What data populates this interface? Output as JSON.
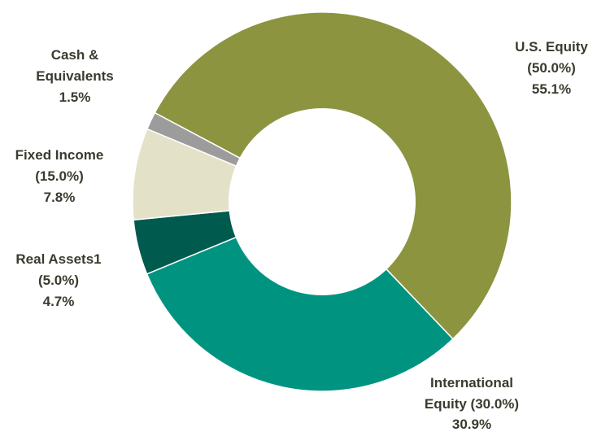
{
  "chart_data": {
    "type": "pie",
    "donut": true,
    "legend": "none",
    "slices": [
      {
        "name": "U.S. Equity",
        "target": "(50.0%)",
        "value": 55.1,
        "value_label": "55.1%",
        "color": "#8c9440",
        "label_lines": [
          "U.S. Equity",
          "(50.0%)",
          "55.1%"
        ]
      },
      {
        "name": "International Equity",
        "target": "(30.0%)",
        "value": 30.9,
        "value_label": "30.9%",
        "color": "#009480",
        "label_lines": [
          "International",
          "Equity (30.0%)",
          "30.9%"
        ]
      },
      {
        "name": "Real Assets1",
        "target": "(5.0%)",
        "value": 4.7,
        "value_label": "4.7%",
        "color": "#005a4e",
        "label_lines": [
          "Real Assets1",
          "(5.0%)",
          "4.7%"
        ]
      },
      {
        "name": "Fixed Income",
        "target": "(15.0%)",
        "value": 7.8,
        "value_label": "7.8%",
        "color": "#e4e1c9",
        "label_lines": [
          "Fixed Income",
          "(15.0%)",
          "7.8%"
        ]
      },
      {
        "name": "Cash & Equivalents",
        "target": "",
        "value": 1.5,
        "value_label": "1.5%",
        "color": "#9b9c9b",
        "label_lines": [
          "Cash &",
          "Equivalents",
          "1.5%"
        ]
      }
    ]
  }
}
